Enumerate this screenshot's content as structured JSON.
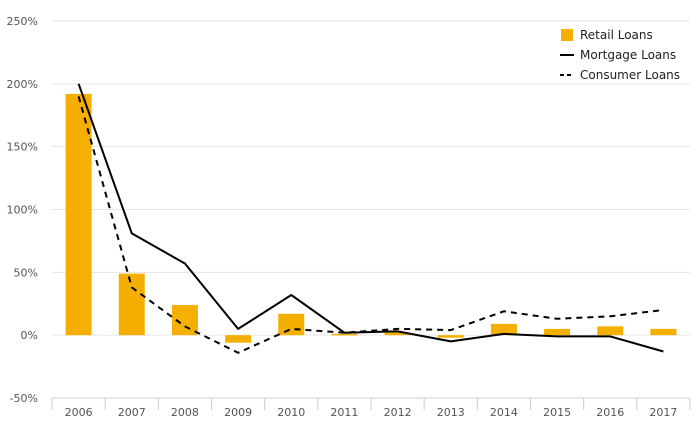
{
  "chart_data": {
    "type": "bar",
    "categories": [
      "2006",
      "2007",
      "2008",
      "2009",
      "2010",
      "2011",
      "2012",
      "2013",
      "2014",
      "2015",
      "2016",
      "2017"
    ],
    "series": [
      {
        "name": "Retail Loans",
        "type": "bar",
        "color": "#F5AF00",
        "values": [
          192,
          49,
          24,
          -6,
          17,
          1,
          2,
          -2,
          9,
          5,
          7,
          5
        ]
      },
      {
        "name": "Mortgage Loans",
        "type": "line",
        "style": "solid",
        "color": "#000000",
        "values": [
          200,
          81,
          57,
          5,
          32,
          2,
          3,
          -5,
          1,
          -1,
          -1,
          -13
        ]
      },
      {
        "name": "Consumer Loans",
        "type": "line",
        "style": "dashed",
        "color": "#000000",
        "values": [
          190,
          38,
          7,
          -14,
          5,
          2,
          5,
          4,
          19,
          13,
          15,
          20
        ]
      }
    ],
    "ylim": [
      -50,
      250
    ],
    "yticks": [
      -50,
      0,
      50,
      100,
      150,
      200,
      250
    ],
    "ytick_labels": [
      "-50%",
      "0%",
      "50%",
      "100%",
      "150%",
      "200%",
      "250%"
    ],
    "grid": true,
    "legend_position": "top-right",
    "title": "",
    "xlabel": "",
    "ylabel": ""
  }
}
